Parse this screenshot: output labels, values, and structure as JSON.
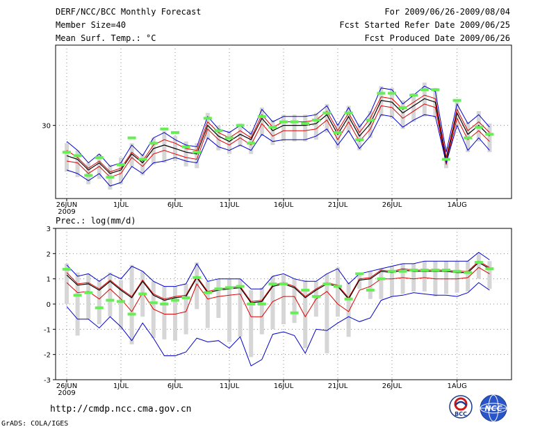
{
  "header": {
    "title": "DERF/NCC/BCC Monthly Forecast",
    "member_size": "Member Size=40",
    "variable1": "Mean Surf. Temp.: °C",
    "period": "For 2009/06/26-2009/08/04",
    "started": "Fcst Started Refer Date 2009/06/25",
    "produced": "Fcst Produced Date 2009/06/26"
  },
  "panel2_label": "Prec.: log(mm/d)",
  "footer": {
    "url": "http://cmdp.ncc.cma.gov.cn",
    "grads": "GrADS: COLA/IGES",
    "logo1": "BCC",
    "logo2": "NCC"
  },
  "colors": {
    "envelope": "#0000cc",
    "inner": "#e00000",
    "mean": "#000000",
    "box": "#d6d6d6",
    "marker": "#66ee55"
  },
  "chart_data": [
    {
      "type": "line",
      "title": "Mean Surf. Temp.: °C",
      "x_tick_labels": [
        "26JUN",
        "1JUL",
        "6JUL",
        "11JUL",
        "16JUL",
        "21JUL",
        "26JUL",
        "1AUG"
      ],
      "x_tick_days": [
        0,
        5,
        10,
        15,
        20,
        25,
        30,
        36
      ],
      "x_sublabel": "2009",
      "y_ticks": [
        30
      ],
      "y_tick_labels": [
        "30"
      ],
      "ylim": [
        25.9,
        34.5
      ],
      "series": [
        {
          "name": "ensemble max",
          "values": [
            29.1,
            28.6,
            27.9,
            28.4,
            27.7,
            27.9,
            28.9,
            28.3,
            29.3,
            29.6,
            29.2,
            28.9,
            28.8,
            30.5,
            29.8,
            29.6,
            30.0,
            29.5,
            30.9,
            30.2,
            30.5,
            30.5,
            30.5,
            30.6,
            31.1,
            30.0,
            31.0,
            29.9,
            30.7,
            32.1,
            32.0,
            31.2,
            31.7,
            32.2,
            31.9,
            28.5,
            31.2,
            30.1,
            30.6,
            29.9
          ]
        },
        {
          "name": "upper inner",
          "values": [
            28.6,
            28.2,
            27.6,
            28.0,
            27.4,
            27.6,
            28.5,
            28.0,
            28.9,
            29.2,
            29.0,
            28.7,
            28.6,
            30.2,
            29.6,
            29.3,
            29.7,
            29.3,
            30.6,
            29.9,
            30.2,
            30.2,
            30.2,
            30.3,
            30.8,
            29.7,
            30.7,
            29.6,
            30.4,
            31.6,
            31.5,
            30.9,
            31.3,
            31.7,
            31.5,
            28.2,
            30.9,
            29.7,
            30.2,
            29.6
          ]
        },
        {
          "name": "ensemble mean",
          "values": [
            28.3,
            28.1,
            27.5,
            27.9,
            27.3,
            27.5,
            28.4,
            27.9,
            28.7,
            28.9,
            28.7,
            28.5,
            28.4,
            30.0,
            29.4,
            29.1,
            29.5,
            29.2,
            30.4,
            29.7,
            30.0,
            30.0,
            30.0,
            30.1,
            30.6,
            29.5,
            30.5,
            29.4,
            30.1,
            31.4,
            31.3,
            30.7,
            31.1,
            31.5,
            31.3,
            28.0,
            30.7,
            29.5,
            30.0,
            29.4
          ]
        },
        {
          "name": "lower inner",
          "values": [
            28.0,
            27.9,
            27.3,
            27.7,
            27.1,
            27.3,
            28.2,
            27.7,
            28.4,
            28.6,
            28.4,
            28.2,
            28.1,
            29.8,
            29.2,
            28.9,
            29.3,
            28.9,
            30.1,
            29.4,
            29.7,
            29.7,
            29.7,
            29.8,
            30.3,
            29.2,
            30.2,
            29.1,
            29.8,
            31.1,
            31.0,
            30.4,
            30.8,
            31.2,
            31.0,
            27.8,
            30.4,
            29.2,
            29.7,
            29.1
          ]
        },
        {
          "name": "ensemble min",
          "values": [
            27.5,
            27.3,
            26.9,
            27.3,
            26.6,
            26.8,
            27.7,
            27.3,
            27.9,
            28.0,
            28.2,
            28.0,
            27.9,
            29.3,
            28.8,
            28.6,
            28.9,
            28.6,
            29.5,
            29.1,
            29.2,
            29.2,
            29.2,
            29.4,
            29.8,
            28.9,
            29.7,
            28.7,
            29.4,
            30.6,
            30.5,
            29.9,
            30.3,
            30.6,
            30.5,
            27.9,
            30.0,
            28.6,
            29.3,
            28.6
          ]
        }
      ],
      "box_low": [
        27.4,
        27.1,
        26.7,
        27.0,
        26.4,
        26.7,
        27.7,
        27.2,
        27.8,
        27.9,
        28.0,
        27.7,
        27.6,
        29.2,
        28.6,
        28.4,
        28.8,
        28.4,
        29.4,
        28.9,
        29.1,
        29.1,
        29.1,
        29.2,
        29.6,
        28.7,
        29.6,
        28.6,
        29.3,
        30.5,
        30.4,
        29.8,
        30.2,
        30.5,
        30.4,
        27.6,
        29.9,
        28.5,
        29.1,
        28.5
      ],
      "box_high": [
        29.0,
        28.6,
        27.9,
        28.4,
        27.8,
        28.2,
        29.0,
        28.4,
        29.3,
        29.7,
        29.4,
        29.1,
        29.0,
        30.7,
        30.0,
        29.7,
        30.1,
        29.7,
        31.0,
        30.3,
        30.6,
        30.6,
        30.6,
        30.7,
        31.2,
        30.1,
        31.1,
        30.1,
        30.8,
        32.2,
        32.1,
        31.4,
        31.8,
        32.4,
        32.1,
        28.8,
        31.4,
        30.2,
        30.8,
        30.1
      ],
      "markers": [
        28.5,
        28.3,
        27.2,
        28.2,
        27.1,
        27.8,
        29.3,
        28.1,
        29.0,
        29.8,
        29.6,
        28.8,
        28.5,
        30.4,
        29.7,
        29.3,
        30.0,
        29.0,
        30.5,
        29.9,
        30.2,
        30.2,
        30.1,
        30.3,
        30.7,
        29.6,
        30.7,
        29.2,
        30.3,
        31.8,
        31.8,
        31.0,
        31.7,
        32.0,
        32.0,
        28.1,
        31.4,
        29.3,
        29.9,
        29.5
      ]
    },
    {
      "type": "line",
      "title": "Prec.: log(mm/d)",
      "x_tick_labels": [
        "26JUN",
        "1JUL",
        "6JUL",
        "11JUL",
        "16JUL",
        "21JUL",
        "26JUL",
        "1AUG"
      ],
      "x_tick_days": [
        0,
        5,
        10,
        15,
        20,
        25,
        30,
        36
      ],
      "x_sublabel": "2009",
      "y_ticks": [
        -3,
        -2,
        -1,
        0,
        1,
        2,
        3
      ],
      "y_tick_labels": [
        "-3",
        "-2",
        "-1",
        "0",
        "1",
        "2",
        "3"
      ],
      "ylim": [
        -3,
        3
      ],
      "series": [
        {
          "name": "ensemble max",
          "values": [
            1.55,
            1.1,
            1.2,
            0.9,
            1.2,
            1.0,
            1.5,
            1.3,
            0.9,
            0.7,
            0.7,
            0.8,
            1.6,
            0.9,
            1.0,
            1.0,
            1.0,
            0.6,
            0.6,
            1.1,
            1.2,
            1.0,
            0.9,
            0.9,
            1.2,
            1.4,
            0.8,
            1.2,
            1.3,
            1.4,
            1.5,
            1.6,
            1.6,
            1.7,
            1.7,
            1.7,
            1.7,
            1.7,
            2.05,
            1.75
          ]
        },
        {
          "name": "upper inner",
          "values": [
            1.25,
            0.8,
            0.85,
            0.6,
            0.95,
            0.6,
            0.3,
            0.95,
            0.4,
            0.2,
            0.3,
            0.35,
            1.1,
            0.5,
            0.6,
            0.65,
            0.7,
            0.1,
            0.15,
            0.75,
            0.85,
            0.7,
            0.3,
            0.6,
            0.85,
            0.75,
            0.25,
            1.0,
            1.05,
            1.35,
            1.3,
            1.4,
            1.35,
            1.35,
            1.35,
            1.35,
            1.3,
            1.3,
            1.7,
            1.45
          ]
        },
        {
          "name": "ensemble mean",
          "values": [
            1.15,
            0.75,
            0.8,
            0.55,
            0.9,
            0.55,
            0.25,
            0.9,
            0.35,
            0.15,
            0.25,
            0.3,
            1.05,
            0.45,
            0.55,
            0.6,
            0.65,
            0.05,
            0.1,
            0.7,
            0.8,
            0.65,
            0.25,
            0.55,
            0.8,
            0.7,
            0.2,
            0.95,
            1.0,
            1.3,
            1.25,
            1.35,
            1.3,
            1.3,
            1.3,
            1.3,
            1.25,
            1.25,
            1.65,
            1.4
          ]
        },
        {
          "name": "lower inner",
          "values": [
            0.85,
            0.45,
            0.5,
            0.2,
            0.6,
            0.2,
            -0.3,
            0.45,
            -0.2,
            -0.4,
            -0.4,
            -0.3,
            0.8,
            0.2,
            0.3,
            0.35,
            0.4,
            -0.5,
            -0.5,
            0.1,
            0.3,
            0.3,
            -0.5,
            0.2,
            0.5,
            0.0,
            -0.3,
            0.55,
            0.7,
            1.0,
            1.0,
            1.05,
            1.0,
            1.05,
            1.0,
            1.0,
            1.0,
            1.05,
            1.45,
            1.2
          ]
        },
        {
          "name": "ensemble min",
          "values": [
            -0.1,
            -0.6,
            -0.6,
            -0.95,
            -0.5,
            -0.9,
            -1.45,
            -0.75,
            -1.35,
            -2.05,
            -2.05,
            -1.9,
            -1.35,
            -1.5,
            -1.45,
            -1.75,
            -1.3,
            -2.45,
            -2.2,
            -1.2,
            -1.1,
            -1.25,
            -1.95,
            -1.0,
            -1.05,
            -0.75,
            -0.5,
            -0.7,
            -0.55,
            0.15,
            0.3,
            0.35,
            0.45,
            0.4,
            0.35,
            0.35,
            0.3,
            0.45,
            0.85,
            0.55
          ]
        }
      ],
      "box_low": [
        0.0,
        -1.25,
        -0.6,
        -0.8,
        -0.5,
        -1.0,
        -1.6,
        -0.5,
        -1.35,
        -1.4,
        -1.45,
        -1.2,
        -0.2,
        -0.95,
        -0.55,
        -1.5,
        -1.3,
        -2.1,
        -1.2,
        -1.0,
        -0.8,
        -0.75,
        -1.75,
        -0.5,
        -1.95,
        -0.5,
        -1.3,
        0.6,
        0.2,
        0.2,
        0.3,
        0.4,
        0.5,
        0.5,
        0.3,
        0.4,
        0.45,
        0.5,
        1.0,
        0.6
      ],
      "box_high": [
        1.6,
        1.25,
        1.2,
        0.95,
        1.25,
        0.95,
        1.55,
        1.3,
        0.9,
        0.7,
        0.7,
        0.8,
        1.65,
        0.9,
        1.0,
        1.0,
        1.0,
        0.55,
        0.65,
        1.1,
        1.15,
        1.0,
        0.95,
        0.9,
        1.2,
        1.45,
        0.85,
        1.15,
        1.3,
        1.4,
        1.5,
        1.6,
        1.6,
        1.7,
        1.7,
        1.7,
        1.7,
        1.7,
        2.0,
        1.7
      ],
      "markers": [
        1.38,
        0.35,
        0.45,
        -0.15,
        0.15,
        0.1,
        -0.4,
        0.4,
        0.05,
        0.0,
        0.15,
        0.25,
        1.05,
        0.45,
        0.6,
        0.65,
        0.7,
        0.0,
        0.0,
        0.8,
        0.8,
        -0.35,
        0.55,
        0.3,
        0.8,
        0.7,
        0.2,
        1.2,
        0.55,
        1.0,
        1.3,
        1.3,
        1.35,
        1.35,
        1.35,
        1.35,
        1.3,
        1.25,
        1.65,
        1.4
      ]
    }
  ]
}
